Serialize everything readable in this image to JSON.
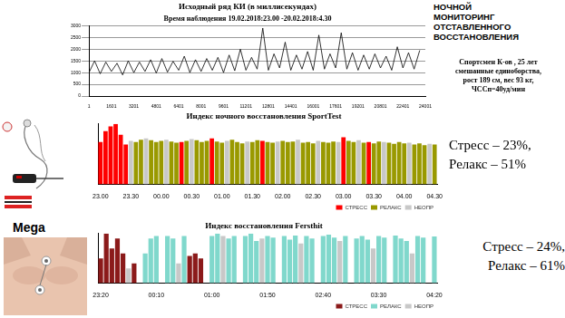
{
  "header": {
    "lines": [
      "НОЧНОЙ",
      "МОНИТОРИНГ",
      "ОТСТАВЛЕННОГО",
      "ВОССТАНОВЛЕНИЯ"
    ],
    "subject": [
      "Спортсмен К-ов , 25 лет",
      "смешанные единоборства,",
      "рост 189 см, вес 93 кг,",
      "ЧССп=40уд/мин"
    ]
  },
  "device_label": "Mega",
  "chart_data": [
    {
      "type": "line",
      "title": "Исходный ряд КИ (в миллисекундах)",
      "subtitle": "Время наблюдения 19.02.2018:23.00 -20.02.2018:4.30",
      "x": [
        1,
        401,
        801,
        1201,
        1601,
        2001,
        2401,
        2801,
        3201,
        3601,
        4001,
        4401,
        4801,
        5201,
        5601,
        6001,
        6401,
        6801,
        7201,
        7601,
        8001,
        8401,
        8801,
        9201,
        9601,
        10001,
        10401,
        10801,
        11201,
        11601,
        12001,
        12401,
        12801,
        13201,
        13601,
        14001,
        14401,
        14801,
        15201,
        15601,
        16001,
        16401,
        16801,
        17201,
        17601,
        18001,
        18401,
        18801,
        19201,
        19601,
        20001,
        20401,
        20801,
        21201,
        21601,
        22001,
        22401,
        22801,
        23201,
        23601
      ],
      "values": [
        1000,
        1500,
        950,
        1450,
        1050,
        1400,
        900,
        1500,
        1000,
        1450,
        1050,
        1550,
        980,
        1600,
        1020,
        1480,
        1100,
        1700,
        1000,
        1550,
        1050,
        1600,
        1100,
        1650,
        1000,
        1750,
        1080,
        2000,
        1100,
        1650,
        1150,
        2900,
        1100,
        1800,
        1200,
        2300,
        1100,
        1750,
        1150,
        1900,
        1100,
        2600,
        1150,
        1800,
        1200,
        2700,
        1150,
        1850,
        1100,
        1750,
        1150,
        1800,
        1200,
        1700,
        1100,
        2100,
        1200,
        1850,
        1150,
        1950
      ],
      "color": "#000000",
      "xlim": [
        1,
        24001
      ],
      "xticks": [
        1,
        1601,
        3201,
        4801,
        6401,
        8001,
        9601,
        11201,
        12801,
        14401,
        16001,
        17601,
        19201,
        20801,
        22401,
        24001
      ],
      "ylim": [
        0,
        3000
      ],
      "yticks": [
        0,
        500,
        1000,
        1500,
        2000,
        2500,
        3000
      ],
      "grid": true
    },
    {
      "type": "bar",
      "title": "Индекс ночного восстановления SportTest",
      "categories": [
        "23.00",
        null,
        null,
        null,
        null,
        null,
        "23.30",
        null,
        null,
        null,
        null,
        null,
        "00.00",
        null,
        null,
        null,
        null,
        null,
        "00.30",
        null,
        null,
        null,
        null,
        null,
        "01.00",
        null,
        null,
        null,
        null,
        null,
        "01.30",
        null,
        null,
        null,
        null,
        null,
        "02.00",
        null,
        null,
        null,
        null,
        null,
        "02.30",
        null,
        null,
        null,
        null,
        null,
        "03.00",
        null,
        null,
        null,
        null,
        null,
        "03.30",
        null,
        null,
        null,
        null,
        null,
        "04.00",
        null,
        null,
        null,
        null,
        null,
        "04.30"
      ],
      "series": [
        {
          "name": "СТРЕСС",
          "color": "#ff0000",
          "values": [
            70,
            88,
            96,
            100,
            82,
            66,
            null,
            null,
            null,
            null,
            null,
            null,
            null,
            null,
            null,
            null,
            70,
            null,
            null,
            null,
            null,
            null,
            76,
            null,
            null,
            null,
            null,
            null,
            null,
            null,
            null,
            null,
            72,
            null,
            null,
            null,
            null,
            null,
            null,
            null,
            null,
            null,
            null,
            null,
            null,
            null,
            null,
            null,
            78,
            null,
            null,
            null,
            null,
            70,
            null,
            null,
            null,
            null,
            null,
            null,
            null,
            null,
            null,
            null,
            null,
            null,
            null
          ]
        },
        {
          "name": "РЕЛАКС",
          "color": "#999900",
          "values": [
            null,
            null,
            null,
            null,
            null,
            null,
            null,
            70,
            74,
            null,
            73,
            70,
            72,
            null,
            71,
            69,
            null,
            72,
            null,
            73,
            70,
            72,
            null,
            71,
            69,
            null,
            74,
            70,
            68,
            null,
            70,
            73,
            null,
            70,
            69,
            null,
            72,
            70,
            71,
            null,
            69,
            70,
            68,
            null,
            70,
            69,
            71,
            null,
            null,
            72,
            70,
            null,
            69,
            null,
            68,
            71,
            null,
            69,
            67,
            70,
            68,
            null,
            66,
            68,
            65,
            null,
            66
          ]
        },
        {
          "name": "НЕОПР",
          "color": "#c8c8c8",
          "values": [
            null,
            null,
            null,
            null,
            null,
            null,
            72,
            null,
            null,
            76,
            null,
            null,
            null,
            74,
            null,
            null,
            null,
            null,
            75,
            null,
            null,
            null,
            null,
            null,
            null,
            72,
            null,
            null,
            null,
            71,
            null,
            null,
            null,
            null,
            null,
            71,
            null,
            null,
            null,
            74,
            null,
            null,
            null,
            72,
            null,
            null,
            null,
            70,
            null,
            null,
            null,
            73,
            null,
            null,
            null,
            null,
            70,
            null,
            null,
            null,
            null,
            69,
            null,
            null,
            null,
            67,
            null
          ]
        }
      ],
      "stacked": true,
      "ylim": [
        0,
        100
      ],
      "tick_labels": "x",
      "legend": "bottom-right",
      "annotations": [
        "Стресс – 23%,",
        "Релакс – 51%"
      ]
    },
    {
      "type": "bar",
      "title": "Индекс восстановления Fersthit",
      "categories": [
        "23:20",
        null,
        null,
        null,
        null,
        null,
        null,
        null,
        null,
        null,
        "00:10",
        null,
        null,
        null,
        null,
        null,
        null,
        null,
        null,
        null,
        "01:00",
        null,
        null,
        null,
        null,
        null,
        null,
        null,
        null,
        null,
        "01:50",
        null,
        null,
        null,
        null,
        null,
        null,
        null,
        null,
        null,
        "02:40",
        null,
        null,
        null,
        null,
        null,
        null,
        null,
        null,
        null,
        "03:30",
        null,
        null,
        null,
        null,
        null,
        null,
        null,
        null,
        null,
        "04:20"
      ],
      "series": [
        {
          "name": "СТРЕСС",
          "color": "#8b1a1a",
          "values": [
            50,
            100,
            70,
            90,
            60,
            null,
            40,
            null,
            null,
            null,
            null,
            null,
            null,
            null,
            null,
            null,
            55,
            60,
            50,
            null,
            null,
            null,
            null,
            null,
            null,
            null,
            null,
            null,
            null,
            null,
            null,
            null,
            null,
            null,
            null,
            null,
            null,
            null,
            null,
            null,
            null,
            null,
            null,
            null,
            null,
            null,
            null,
            null,
            null,
            null,
            null,
            null,
            null,
            null,
            null,
            null,
            null,
            null,
            null,
            null,
            null
          ]
        },
        {
          "name": "РЕЛАКС",
          "color": "#80d8cc",
          "values": [
            null,
            null,
            null,
            null,
            null,
            null,
            null,
            null,
            60,
            90,
            95,
            null,
            95,
            90,
            null,
            95,
            null,
            null,
            null,
            null,
            95,
            100,
            null,
            90,
            95,
            null,
            95,
            100,
            85,
            null,
            95,
            92,
            null,
            95,
            88,
            96,
            null,
            95,
            90,
            null,
            95,
            98,
            92,
            null,
            95,
            null,
            90,
            95,
            88,
            null,
            95,
            92,
            null,
            96,
            90,
            85,
            null,
            95,
            92,
            null,
            94
          ]
        },
        {
          "name": "НЕОПР",
          "color": "#c8c8c8",
          "values": [
            null,
            null,
            null,
            null,
            null,
            30,
            null,
            null,
            null,
            null,
            null,
            null,
            null,
            null,
            40,
            null,
            null,
            null,
            null,
            null,
            null,
            null,
            95,
            null,
            null,
            null,
            null,
            null,
            null,
            90,
            null,
            null,
            null,
            null,
            null,
            null,
            80,
            null,
            null,
            null,
            null,
            null,
            null,
            85,
            null,
            null,
            null,
            null,
            null,
            70,
            null,
            null,
            null,
            null,
            null,
            null,
            60,
            null,
            null,
            null,
            null
          ]
        }
      ],
      "stacked": true,
      "ylim": [
        0,
        100
      ],
      "tick_labels": "x",
      "legend": "bottom-right",
      "annotations": [
        "Стресс – 24%,",
        "Релакс – 61%"
      ]
    }
  ]
}
